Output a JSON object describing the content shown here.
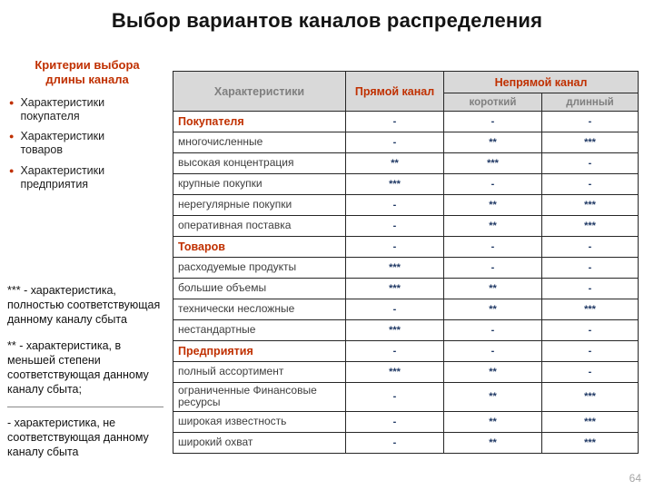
{
  "colors": {
    "accent_red": "#c03000",
    "value_navy": "#1f3864",
    "header_text_gray": "#7f7f7f",
    "header_bg": "#d9d9d9"
  },
  "title": "Выбор вариантов каналов распределения",
  "page_number": "64",
  "sidebar": {
    "heading": "Критерии выбора длины канала",
    "bullets": [
      "Характеристики покупателя",
      "Характеристики товаров",
      "Характеристики предприятия"
    ],
    "legend": [
      "*** - характеристика, полностью соответствующая данному каналу сбыта",
      "** - характеристика, в меньшей степени соответствующая данному каналу сбыта;",
      "- характеристика, не соответствующая данному каналу сбыта"
    ]
  },
  "table": {
    "header": {
      "characteristics": "Характеристики",
      "direct": "Прямой канал",
      "indirect": "Непрямой канал",
      "short": "короткий",
      "long": "длинный"
    },
    "rows": [
      {
        "label": "Покупателя",
        "section": true,
        "direct": "-",
        "short": "-",
        "long": "-"
      },
      {
        "label": "многочисленные",
        "section": false,
        "direct": "-",
        "short": "**",
        "long": "***"
      },
      {
        "label": "высокая концентрация",
        "section": false,
        "direct": "**",
        "short": "***",
        "long": "-"
      },
      {
        "label": "крупные покупки",
        "section": false,
        "direct": "***",
        "short": "-",
        "long": "-"
      },
      {
        "label": "нерегулярные покупки",
        "section": false,
        "direct": "-",
        "short": "**",
        "long": "***"
      },
      {
        "label": "оперативная поставка",
        "section": false,
        "direct": "-",
        "short": "**",
        "long": "***"
      },
      {
        "label": "Товаров",
        "section": true,
        "direct": "-",
        "short": "-",
        "long": "-"
      },
      {
        "label": "расходуемые продукты",
        "section": false,
        "direct": "***",
        "short": "-",
        "long": "-"
      },
      {
        "label": "большие объемы",
        "section": false,
        "direct": "***",
        "short": "**",
        "long": "-"
      },
      {
        "label": "технически несложные",
        "section": false,
        "direct": "-",
        "short": "**",
        "long": "***"
      },
      {
        "label": "нестандартные",
        "section": false,
        "direct": "***",
        "short": "-",
        "long": "-"
      },
      {
        "label": "Предприятия",
        "section": true,
        "direct": "-",
        "short": "-",
        "long": "-"
      },
      {
        "label": "полный ассортимент",
        "section": false,
        "direct": "***",
        "short": "**",
        "long": "-"
      },
      {
        "label": "ограниченные Финансовые ресурсы",
        "section": false,
        "direct": "-",
        "short": "**",
        "long": "***"
      },
      {
        "label": "широкая известность",
        "section": false,
        "direct": "-",
        "short": "**",
        "long": "***"
      },
      {
        "label": "широкий охват",
        "section": false,
        "direct": "-",
        "short": "**",
        "long": "***"
      }
    ]
  }
}
